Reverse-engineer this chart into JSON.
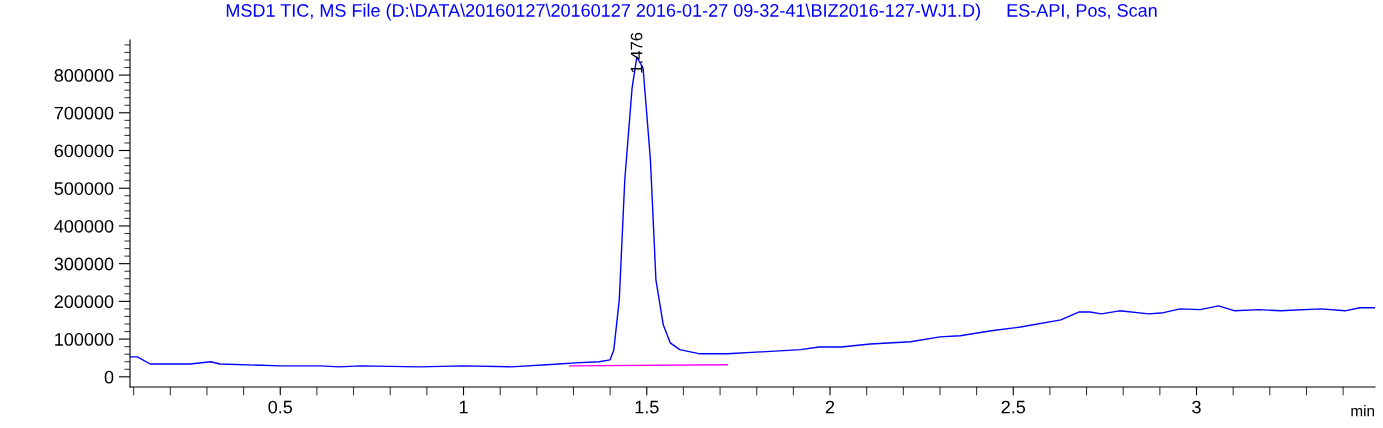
{
  "chart_data": {
    "type": "line",
    "title": "MSD1 TIC, MS File (D:\\DATA\\20160127\\20160127 2016-01-27 09-32-41\\BIZ2016-127-WJ1.D)     ES-API, Pos, Scan",
    "xlabel": "min",
    "series": [
      {
        "color": "#0000ff",
        "x": [
          0.09,
          0.11,
          0.145,
          0.254,
          0.31,
          0.336,
          0.5,
          0.61,
          0.66,
          0.72,
          0.88,
          1.0,
          1.13,
          1.26,
          1.305,
          1.37,
          1.4,
          1.41,
          1.425,
          1.44,
          1.46,
          1.473,
          1.49,
          1.51,
          1.525,
          1.545,
          1.564,
          1.59,
          1.645,
          1.72,
          1.81,
          1.92,
          1.97,
          2.03,
          2.11,
          2.22,
          2.3,
          2.355,
          2.44,
          2.52,
          2.63,
          2.68,
          2.71,
          2.74,
          2.79,
          2.87,
          2.91,
          2.955,
          3.01,
          3.06,
          3.105,
          3.17,
          3.23,
          3.34,
          3.405,
          3.446,
          3.487
        ],
        "values": [
          53000,
          53000,
          34000,
          34000,
          40000,
          34000,
          29000,
          29000,
          26500,
          29000,
          26500,
          29000,
          26500,
          34000,
          37000,
          40000,
          45000,
          71000,
          204000,
          522000,
          766000,
          848000,
          818000,
          575000,
          257000,
          138000,
          90000,
          72000,
          61000,
          61000,
          66000,
          72000,
          79000,
          79000,
          87000,
          93000,
          106000,
          109000,
          122000,
          132000,
          151000,
          172000,
          172000,
          167000,
          175000,
          167000,
          170000,
          180000,
          178000,
          188000,
          175000,
          178000,
          175000,
          180000,
          175000,
          183000,
          183000
        ]
      },
      {
        "color": "#ff00ff",
        "x": [
          1.29,
          1.72
        ],
        "values": [
          29000,
          32000
        ]
      }
    ],
    "annotations": [
      {
        "text": "1.476",
        "x": 1.476,
        "y": 848000
      }
    ],
    "xlim": [
      0.09,
      3.487
    ],
    "ylim": [
      -27000,
      893000
    ],
    "xticks": [
      {
        "value": 0.1,
        "label": null
      },
      {
        "value": 0.2,
        "label": null
      },
      {
        "value": 0.3,
        "label": null
      },
      {
        "value": 0.4,
        "label": null
      },
      {
        "value": 0.5,
        "label": "0.5"
      },
      {
        "value": 0.6,
        "label": null
      },
      {
        "value": 0.7,
        "label": null
      },
      {
        "value": 0.8,
        "label": null
      },
      {
        "value": 0.9,
        "label": null
      },
      {
        "value": 1,
        "label": "1"
      },
      {
        "value": 1.1,
        "label": null
      },
      {
        "value": 1.2,
        "label": null
      },
      {
        "value": 1.3,
        "label": null
      },
      {
        "value": 1.4,
        "label": null
      },
      {
        "value": 1.5,
        "label": "1.5"
      },
      {
        "value": 1.6,
        "label": null
      },
      {
        "value": 1.7,
        "label": null
      },
      {
        "value": 1.8,
        "label": null
      },
      {
        "value": 1.9,
        "label": null
      },
      {
        "value": 2,
        "label": "2"
      },
      {
        "value": 2.1,
        "label": null
      },
      {
        "value": 2.2,
        "label": null
      },
      {
        "value": 2.3,
        "label": null
      },
      {
        "value": 2.4,
        "label": null
      },
      {
        "value": 2.5,
        "label": "2.5"
      },
      {
        "value": 2.6,
        "label": null
      },
      {
        "value": 2.7,
        "label": null
      },
      {
        "value": 2.8,
        "label": null
      },
      {
        "value": 2.9,
        "label": null
      },
      {
        "value": 3,
        "label": "3"
      },
      {
        "value": 3.1,
        "label": null
      },
      {
        "value": 3.2,
        "label": null
      },
      {
        "value": 3.3,
        "label": null
      },
      {
        "value": 3.4,
        "label": null
      }
    ],
    "yticks": [
      0,
      {
        "value": 20000,
        "label": null
      },
      {
        "value": 40000,
        "label": null
      },
      {
        "value": 60000,
        "label": null
      },
      {
        "value": 80000,
        "label": null
      },
      100000,
      {
        "value": 120000,
        "label": null
      },
      {
        "value": 140000,
        "label": null
      },
      {
        "value": 160000,
        "label": null
      },
      {
        "value": 180000,
        "label": null
      },
      200000,
      {
        "value": 220000,
        "label": null
      },
      {
        "value": 240000,
        "label": null
      },
      {
        "value": 260000,
        "label": null
      },
      {
        "value": 280000,
        "label": null
      },
      300000,
      {
        "value": 320000,
        "label": null
      },
      {
        "value": 340000,
        "label": null
      },
      {
        "value": 360000,
        "label": null
      },
      {
        "value": 380000,
        "label": null
      },
      400000,
      {
        "value": 420000,
        "label": null
      },
      {
        "value": 440000,
        "label": null
      },
      {
        "value": 460000,
        "label": null
      },
      {
        "value": 480000,
        "label": null
      },
      500000,
      {
        "value": 520000,
        "label": null
      },
      {
        "value": 540000,
        "label": null
      },
      {
        "value": 560000,
        "label": null
      },
      {
        "value": 580000,
        "label": null
      },
      600000,
      {
        "value": 620000,
        "label": null
      },
      {
        "value": 640000,
        "label": null
      },
      {
        "value": 660000,
        "label": null
      },
      {
        "value": 680000,
        "label": null
      },
      700000,
      {
        "value": 720000,
        "label": null
      },
      {
        "value": 740000,
        "label": null
      },
      {
        "value": 760000,
        "label": null
      },
      {
        "value": 780000,
        "label": null
      },
      800000,
      {
        "value": 820000,
        "label": null
      },
      {
        "value": 840000,
        "label": null
      },
      {
        "value": 860000,
        "label": null
      },
      {
        "value": 880000,
        "label": null
      }
    ],
    "grid": false,
    "legend": false
  }
}
